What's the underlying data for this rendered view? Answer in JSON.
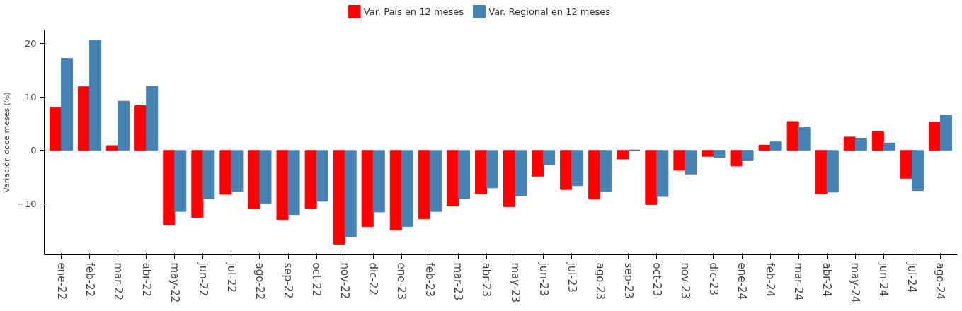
{
  "chart_data": {
    "type": "bar",
    "ylabel": "Variación doce meses (%)",
    "categories": [
      "ene-22",
      "feb-22",
      "mar-22",
      "abr-22",
      "may-22",
      "jun-22",
      "jul-22",
      "ago-22",
      "sep-22",
      "oct-22",
      "nov-22",
      "dic-22",
      "ene-23",
      "feb-23",
      "mar-23",
      "abr-23",
      "may-23",
      "jun-23",
      "jul-23",
      "ago-23",
      "sep-23",
      "oct-23",
      "nov-23",
      "dic-23",
      "ene-24",
      "feb-24",
      "mar-24",
      "abr-24",
      "may-24",
      "jun-24",
      "jul-24",
      "ago-24"
    ],
    "series": [
      {
        "name": "Var. País en 12 meses",
        "color": "#ff0000",
        "values": [
          8.0,
          11.9,
          0.9,
          8.4,
          -13.9,
          -12.5,
          -8.2,
          -10.9,
          -12.9,
          -10.9,
          -17.5,
          -14.2,
          -14.9,
          -12.8,
          -10.4,
          -8.1,
          -10.5,
          -4.8,
          -7.3,
          -9.1,
          -1.6,
          -10.1,
          -3.7,
          -1.1,
          -2.9,
          1.0,
          5.4,
          -8.1,
          2.5,
          3.5,
          -5.2,
          5.3
        ]
      },
      {
        "name": "Var. Regional en 12 meses",
        "color": "#4682b4",
        "values": [
          17.2,
          20.6,
          9.2,
          12.0,
          -11.4,
          -9.0,
          -7.6,
          -9.9,
          -12.0,
          -9.5,
          -16.2,
          -11.5,
          -14.2,
          -11.4,
          -9.0,
          -7.0,
          -8.4,
          -2.7,
          -6.6,
          -7.6,
          0.1,
          -8.6,
          -4.4,
          -1.3,
          -1.9,
          1.6,
          4.3,
          -7.8,
          2.3,
          1.4,
          -7.5,
          6.6
        ]
      }
    ],
    "ylim": [
      -19.5,
      22.5
    ],
    "yticks": [
      -10,
      0,
      10,
      20
    ],
    "grid": false,
    "legend": "top"
  }
}
